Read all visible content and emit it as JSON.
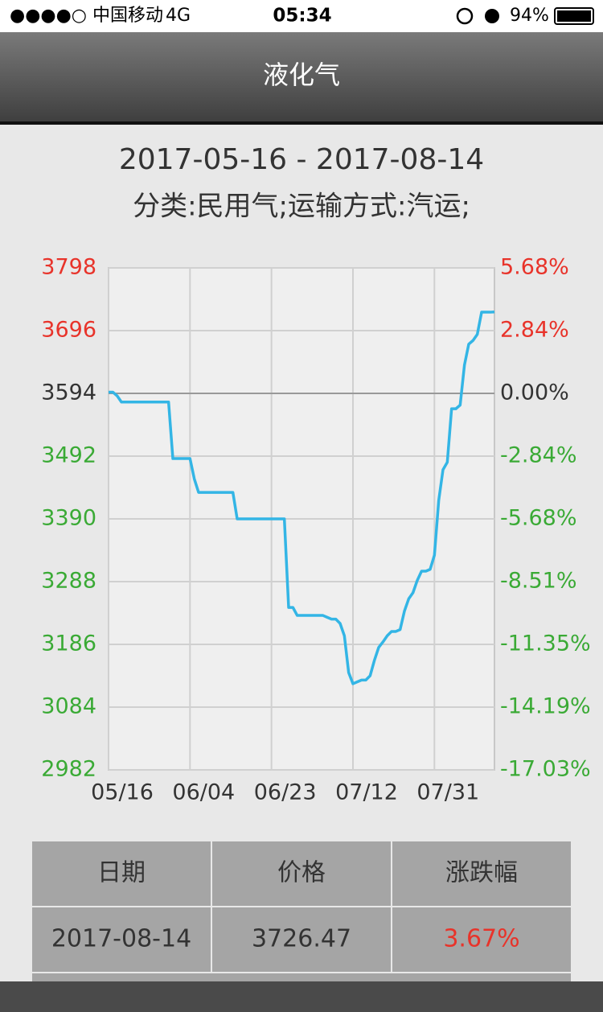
{
  "status_bar": {
    "carrier": "●●●●○ 中国移动",
    "network": "4G",
    "time": "05:34",
    "battery": "94%"
  },
  "nav": {
    "title": "液化气"
  },
  "chart_data": {
    "type": "line",
    "title": "2017-05-16 - 2017-08-14",
    "subtitle": "分类:民用气;运输方式:汽运;",
    "color": "#33b5e5",
    "up_color": "#e8332a",
    "flat_color": "#333333",
    "down_color": "#3aaa35",
    "grid": true,
    "categories": [
      "05/16",
      null,
      null,
      null,
      null,
      null,
      null,
      null,
      null,
      null,
      null,
      null,
      null,
      null,
      null,
      null,
      null,
      null,
      null,
      "06/04",
      null,
      null,
      null,
      null,
      null,
      null,
      null,
      null,
      null,
      null,
      null,
      null,
      null,
      null,
      null,
      null,
      null,
      null,
      "06/23",
      null,
      null,
      null,
      null,
      null,
      null,
      null,
      null,
      null,
      null,
      null,
      null,
      null,
      null,
      null,
      null,
      null,
      null,
      "07/12",
      null,
      null,
      null,
      null,
      null,
      null,
      null,
      null,
      null,
      null,
      null,
      null,
      null,
      null,
      null,
      null,
      null,
      null,
      "07/31",
      null,
      null,
      null,
      null,
      null,
      null,
      null,
      null,
      null,
      null,
      null,
      null,
      null,
      null
    ],
    "values": [
      3596,
      3596,
      3590,
      3580,
      3580,
      3580,
      3580,
      3580,
      3580,
      3580,
      3580,
      3580,
      3580,
      3580,
      3580,
      3488,
      3488,
      3488,
      3488,
      3488,
      3455,
      3433,
      3433,
      3433,
      3433,
      3433,
      3433,
      3433,
      3433,
      3433,
      3390,
      3390,
      3390,
      3390,
      3390,
      3390,
      3390,
      3390,
      3390,
      3390,
      3390,
      3390,
      3246,
      3246,
      3233,
      3233,
      3233,
      3233,
      3233,
      3233,
      3233,
      3230,
      3227,
      3227,
      3220,
      3200,
      3140,
      3122,
      3125,
      3128,
      3128,
      3135,
      3160,
      3181,
      3190,
      3200,
      3207,
      3207,
      3210,
      3240,
      3260,
      3270,
      3290,
      3305,
      3305,
      3308,
      3331,
      3420,
      3470,
      3482,
      3569,
      3569,
      3575,
      3640,
      3674,
      3680,
      3690,
      3726,
      3726,
      3726,
      3726.47
    ],
    "ylim": [
      2982,
      3798
    ],
    "yticks": [
      2982,
      3084,
      3186,
      3288,
      3390,
      3492,
      3594,
      3696,
      3798
    ],
    "y2lim": [
      -17.03,
      5.68
    ],
    "y2ticks": [
      {
        "value": -17.03,
        "label": "-17.03%"
      },
      {
        "value": -14.19,
        "label": "-14.19%"
      },
      {
        "value": -11.35,
        "label": "-11.35%"
      },
      {
        "value": -8.51,
        "label": "-8.51%"
      },
      {
        "value": -5.68,
        "label": "-5.68%"
      },
      {
        "value": -2.84,
        "label": "-2.84%"
      },
      {
        "value": 0,
        "label": "0.00%"
      },
      {
        "value": 2.84,
        "label": "2.84%"
      },
      {
        "value": 5.68,
        "label": "5.68%"
      }
    ]
  },
  "table": {
    "header": [
      "日期",
      "价格",
      "涨跌幅"
    ],
    "rows": [
      [
        "2017-08-14",
        "3726.47",
        "3.67%"
      ]
    ]
  }
}
